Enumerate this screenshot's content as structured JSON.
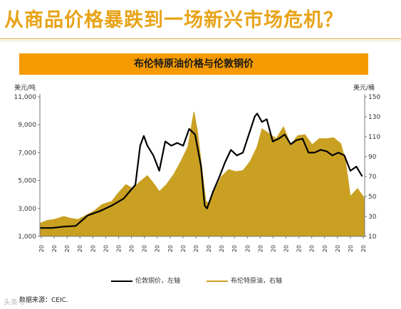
{
  "header": {
    "title": "从商品价格暴跌到一场新兴市场危机？"
  },
  "chart_data": {
    "type": "line",
    "title": "布伦特原油价格与伦敦铜价",
    "left_axis_unit": "美元/吨",
    "right_axis_unit": "美元/桶",
    "left_ylim": [
      1000,
      11000
    ],
    "left_ticks": [
      "1,000",
      "3,000",
      "5,000",
      "7,000",
      "9,000",
      "11,000"
    ],
    "right_ylim": [
      10,
      150
    ],
    "right_ticks": [
      "10",
      "30",
      "50",
      "70",
      "90",
      "110",
      "130",
      "150"
    ],
    "x_tick_label": "20",
    "x_tick_count": 26,
    "x_range": [
      2002,
      2015.6
    ],
    "grid": false,
    "legend_position": "bottom",
    "series": [
      {
        "name": "伦敦铜价，左轴",
        "axis": "left",
        "color": "#000000",
        "style": "line",
        "x": [
          2002.0,
          2002.5,
          2003.0,
          2003.5,
          2004.0,
          2004.5,
          2005.0,
          2005.5,
          2006.0,
          2006.2,
          2006.35,
          2006.5,
          2006.75,
          2007.0,
          2007.25,
          2007.5,
          2007.75,
          2008.0,
          2008.25,
          2008.5,
          2008.75,
          2008.9,
          2009.0,
          2009.25,
          2009.5,
          2009.75,
          2010.0,
          2010.25,
          2010.5,
          2010.75,
          2011.0,
          2011.1,
          2011.3,
          2011.5,
          2011.75,
          2012.0,
          2012.25,
          2012.5,
          2012.75,
          2013.0,
          2013.25,
          2013.5,
          2013.75,
          2014.0,
          2014.25,
          2014.5,
          2014.75,
          2015.0,
          2015.25,
          2015.5
        ],
        "values": [
          1600,
          1600,
          1700,
          1750,
          2500,
          2800,
          3200,
          3700,
          4700,
          7500,
          8200,
          7500,
          6800,
          5700,
          7800,
          7500,
          7700,
          7500,
          8700,
          8300,
          6000,
          3200,
          3000,
          4200,
          5200,
          6300,
          7200,
          6800,
          7000,
          8300,
          9600,
          9800,
          9200,
          9400,
          7800,
          8000,
          8300,
          7600,
          7900,
          8000,
          7000,
          7000,
          7200,
          7100,
          6800,
          7000,
          6800,
          5700,
          6000,
          5300
        ]
      },
      {
        "name": "布伦特原油，右轴",
        "axis": "right",
        "color": "#c9a021",
        "style": "area",
        "x": [
          2002.0,
          2002.3,
          2002.6,
          2003.0,
          2003.3,
          2003.6,
          2004.0,
          2004.3,
          2004.6,
          2005.0,
          2005.3,
          2005.6,
          2005.9,
          2006.2,
          2006.5,
          2006.8,
          2007.0,
          2007.3,
          2007.6,
          2007.9,
          2008.2,
          2008.45,
          2008.6,
          2008.8,
          2008.95,
          2009.1,
          2009.3,
          2009.6,
          2009.9,
          2010.2,
          2010.5,
          2010.8,
          2011.1,
          2011.3,
          2011.6,
          2011.9,
          2012.2,
          2012.5,
          2012.8,
          2013.1,
          2013.4,
          2013.7,
          2014.0,
          2014.3,
          2014.6,
          2014.8,
          2015.0,
          2015.3,
          2015.6
        ],
        "values": [
          23,
          26,
          27,
          30,
          28,
          27,
          32,
          36,
          42,
          45,
          54,
          62,
          58,
          65,
          71,
          62,
          55,
          62,
          72,
          85,
          100,
          135,
          115,
          75,
          45,
          43,
          55,
          70,
          77,
          75,
          76,
          85,
          100,
          118,
          113,
          108,
          120,
          102,
          111,
          112,
          102,
          108,
          108,
          109,
          103,
          85,
          50,
          58,
          48
        ]
      }
    ]
  },
  "legend": [
    {
      "label": "伦敦铜价，左轴",
      "color": "#000000"
    },
    {
      "label": "布伦特原油，右轴",
      "color": "#c9a021"
    }
  ],
  "source": {
    "text": "数据来源：CEIC."
  },
  "watermark": {
    "text": "头条号"
  }
}
